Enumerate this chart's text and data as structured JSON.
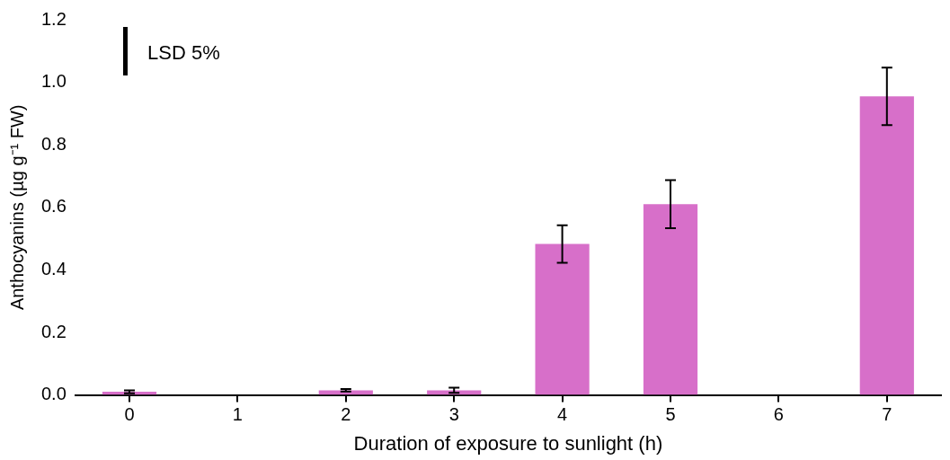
{
  "chart_data": {
    "type": "bar",
    "xlabel": "Duration of exposure to sunlight (h)",
    "ylabel": "Anthocyanins (µg g⁻¹ FW)",
    "categories": [
      "0",
      "1",
      "2",
      "3",
      "4",
      "5",
      "6",
      "7"
    ],
    "values": [
      0.01,
      null,
      0.015,
      0.015,
      0.483,
      0.61,
      null,
      0.955
    ],
    "errors": [
      0.005,
      null,
      0.004,
      0.008,
      0.06,
      0.077,
      null,
      0.092
    ],
    "color": "#d76fc9",
    "ylim": [
      0,
      1.2
    ],
    "yticks": [
      {
        "value": 0,
        "label": "0.0"
      },
      {
        "value": 0.2,
        "label": "0.2"
      },
      {
        "value": 0.4,
        "label": "0.4"
      },
      {
        "value": 0.6,
        "label": "0.6"
      },
      {
        "value": 0.8,
        "label": "0.8"
      },
      {
        "value": 1,
        "label": "1.0"
      },
      {
        "value": 1.2,
        "label": "1.2"
      }
    ],
    "grid": false,
    "annotations": [
      "LSD 5%"
    ]
  }
}
